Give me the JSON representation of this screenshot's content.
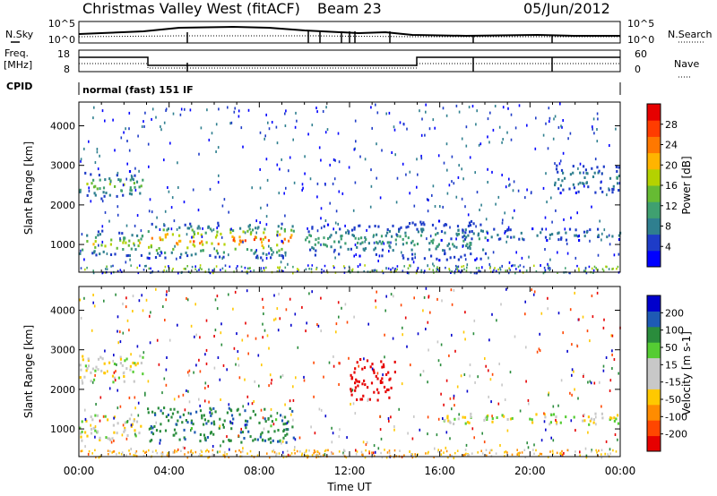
{
  "header": {
    "station": "Christmas Valley West (fitACF)",
    "beam": "Beam 23",
    "date": "05/Jun/2012"
  },
  "side_labels": {
    "nsky": "N.Sky",
    "freq_line1": "Freq.",
    "freq_line2": "[MHz]",
    "cpid": "CPID",
    "nsearch": "N.Search",
    "nave": "Nave",
    "cpid_value": "normal (fast) 151 IF"
  },
  "top_axes": {
    "nsky_ticks": [
      "10^5",
      "10^0"
    ],
    "nsearch_ticks": [
      "10^5",
      "10^0"
    ],
    "freq_ticks": [
      "18",
      "8"
    ],
    "nave_ticks": [
      "60",
      "0"
    ]
  },
  "colors": {
    "power": [
      "#0000ff",
      "#1e3cc8",
      "#2f7f8f",
      "#3fa070",
      "#66bb33",
      "#b4d200",
      "#ffb400",
      "#ff7800",
      "#ff3c00",
      "#e60000"
    ],
    "velocity": [
      "#0000cc",
      "#1e5ab4",
      "#2a8c3c",
      "#55cc33",
      "#c8c8c8",
      "#c8c8c8",
      "#ffc800",
      "#ff8c00",
      "#ff4600",
      "#e60000"
    ]
  },
  "chart_data": [
    {
      "type": "heatmap",
      "name": "power",
      "ylabel": "Slant Range [km]",
      "y_ticks": [
        "1000",
        "2000",
        "3000",
        "4000"
      ],
      "ylim": [
        300,
        4600
      ],
      "colorbar_label": "Power [dB]",
      "colorbar_ticks": [
        "4",
        "8",
        "12",
        "16",
        "20",
        "24",
        "28"
      ],
      "colorbar_range": [
        0,
        32
      ],
      "approx_bands": [
        {
          "t_start": 0.0,
          "t_end": 2.8,
          "range_km": [
            2150,
            2850
          ],
          "peak_db": 18
        },
        {
          "t_start": 0.0,
          "t_end": 2.8,
          "range_km": [
            700,
            1350
          ],
          "peak_db": 22
        },
        {
          "t_start": 3.0,
          "t_end": 9.5,
          "range_km": [
            650,
            1550
          ],
          "peak_db": 30
        },
        {
          "t_start": 10.0,
          "t_end": 14.0,
          "range_km": [
            700,
            1500
          ],
          "peak_db": 14
        },
        {
          "t_start": 14.0,
          "t_end": 18.0,
          "range_km": [
            600,
            1600
          ],
          "peak_db": 14
        },
        {
          "t_start": 16.0,
          "t_end": 24.0,
          "range_km": [
            1100,
            1400
          ],
          "peak_db": 10
        },
        {
          "t_start": 21.0,
          "t_end": 24.0,
          "range_km": [
            2300,
            3000
          ],
          "peak_db": 12
        }
      ]
    },
    {
      "type": "heatmap",
      "name": "velocity",
      "ylabel": "Slant Range [km]",
      "y_ticks": [
        "1000",
        "2000",
        "3000",
        "4000"
      ],
      "ylim": [
        300,
        4600
      ],
      "colorbar_label": "Velocity [m s-1]",
      "colorbar_ticks": [
        "200",
        "100",
        "50",
        "15",
        "-15",
        "-50",
        "-100",
        "-200"
      ],
      "colorbar_range": [
        -250,
        250
      ],
      "approx_bands": [
        {
          "t_start": 0.0,
          "t_end": 2.8,
          "range_km": [
            2150,
            2850
          ],
          "velocity_ms": 0
        },
        {
          "t_start": 0.0,
          "t_end": 2.8,
          "range_km": [
            700,
            1350
          ],
          "velocity_ms": 0
        },
        {
          "t_start": 3.0,
          "t_end": 9.5,
          "range_km": [
            650,
            1550
          ],
          "velocity_ms": 60
        },
        {
          "t_start": 12.0,
          "t_end": 14.0,
          "range_km": [
            1700,
            2800
          ],
          "velocity_ms": -180
        },
        {
          "t_start": 16.0,
          "t_end": 24.0,
          "range_km": [
            1100,
            1400
          ],
          "velocity_ms": 0
        }
      ]
    }
  ],
  "x_axis": {
    "label": "Time UT",
    "ticks": [
      "00:00",
      "04:00",
      "08:00",
      "12:00",
      "16:00",
      "20:00",
      "00:00"
    ],
    "xlim": [
      0,
      24
    ]
  }
}
